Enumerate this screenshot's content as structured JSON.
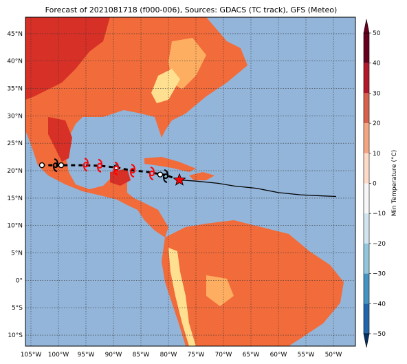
{
  "title": "Forecast of 2021081718 (f000-006), Sources: GDACS (TC track), GFS (Meteo)",
  "colors": {
    "ocean": "#93b5d9",
    "land_warm": "#f26b3a",
    "land_hot": "#d73027",
    "land_mild": "#fdae61",
    "land_cool": "#fee090",
    "grid": "#333333",
    "track": "#000000",
    "storm_red": "#ff0000"
  },
  "map": {
    "lon_ticks": [
      "105°W",
      "100°W",
      "95°W",
      "90°W",
      "85°W",
      "80°W",
      "75°W",
      "70°W",
      "65°W",
      "60°W",
      "55°W",
      "50°W"
    ],
    "lat_ticks": [
      "45°N",
      "40°N",
      "35°N",
      "30°N",
      "25°N",
      "20°N",
      "15°N",
      "10°N",
      "5°N",
      "0°",
      "5°S",
      "10°S"
    ],
    "lon_range": [
      -106,
      -46
    ],
    "lat_range": [
      -12,
      48
    ]
  },
  "colorbar": {
    "label": "Min Temperature (°C)",
    "ticks": [
      "50",
      "40",
      "30",
      "20",
      "10",
      "0",
      "−10",
      "−20",
      "−30",
      "−40",
      "−50"
    ],
    "colors": [
      "#67001f",
      "#b2182b",
      "#d6604d",
      "#f4a582",
      "#fddbc7",
      "#f7f7f7",
      "#d1e5f0",
      "#92c5de",
      "#4393c3",
      "#2166ac",
      "#053061"
    ]
  },
  "track": {
    "observed": [
      [
        -78,
        18.3
      ],
      [
        -75,
        18.1
      ],
      [
        -71,
        17.7
      ],
      [
        -68,
        17.2
      ],
      [
        -64,
        16.8
      ],
      [
        -60,
        16.0
      ],
      [
        -56,
        15.6
      ],
      [
        -52,
        15.4
      ],
      [
        -49.5,
        15.3
      ]
    ],
    "forecast": [
      [
        -78,
        18.3
      ],
      [
        -80.5,
        19.2
      ],
      [
        -84,
        19.8
      ],
      [
        -87,
        20.1
      ],
      [
        -89.5,
        20.6
      ],
      [
        -92.5,
        20.9
      ],
      [
        -96,
        21.0
      ],
      [
        -99.5,
        21.0
      ],
      [
        -103,
        21.0
      ]
    ],
    "current_position": [
      -78,
      18.3
    ],
    "black_symbols": [
      [
        -80.5,
        19.0
      ],
      [
        -100.5,
        21.0
      ]
    ],
    "red_symbols": [
      [
        -83,
        19.5
      ],
      [
        -86.5,
        20.0
      ],
      [
        -89.5,
        20.4
      ],
      [
        -92.5,
        20.9
      ],
      [
        -95,
        21.1
      ]
    ],
    "points": [
      [
        -99.5,
        21.0
      ],
      [
        -103,
        21.0
      ],
      [
        -89.5,
        20.6
      ],
      [
        -81.5,
        19.3
      ]
    ]
  }
}
